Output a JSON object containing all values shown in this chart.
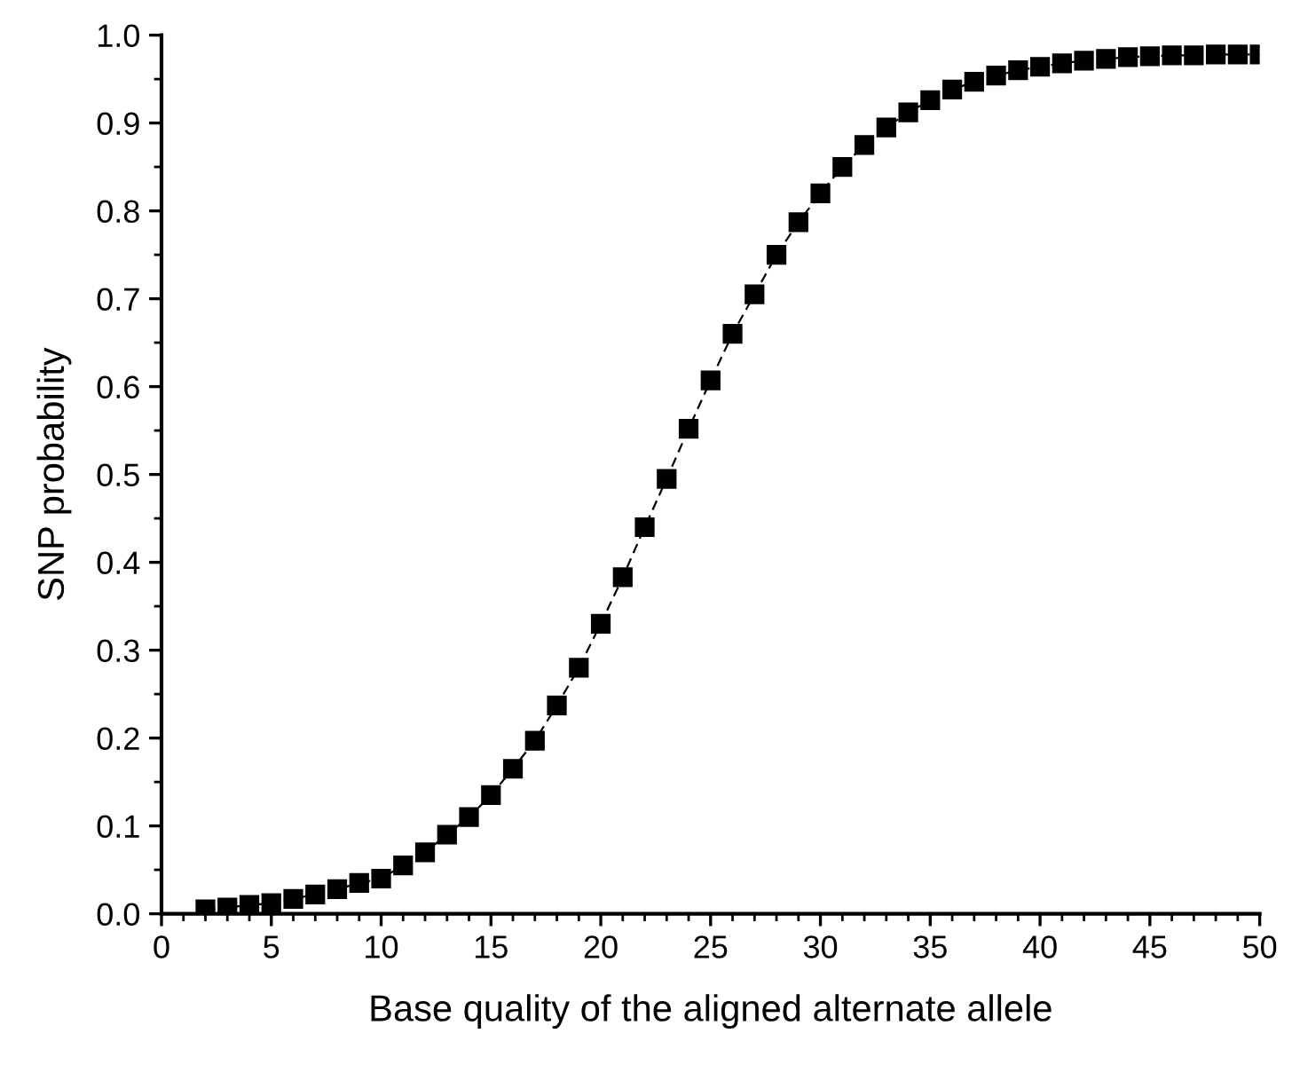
{
  "chart_data": {
    "type": "line",
    "xlabel": "Base quality of the aligned alternate allele",
    "ylabel": "SNP probability",
    "x": [
      2,
      3,
      4,
      5,
      6,
      7,
      8,
      9,
      10,
      11,
      12,
      13,
      14,
      15,
      16,
      17,
      18,
      19,
      20,
      21,
      22,
      23,
      24,
      25,
      26,
      27,
      28,
      29,
      30,
      31,
      32,
      33,
      34,
      35,
      36,
      37,
      38,
      39,
      40,
      41,
      42,
      43,
      44,
      45,
      46,
      47,
      48,
      49,
      50
    ],
    "series": [
      {
        "color": "#000000",
        "values": [
          0.005,
          0.007,
          0.01,
          0.012,
          0.017,
          0.022,
          0.028,
          0.035,
          0.04,
          0.055,
          0.07,
          0.09,
          0.11,
          0.135,
          0.165,
          0.197,
          0.237,
          0.28,
          0.33,
          0.383,
          0.44,
          0.495,
          0.552,
          0.607,
          0.66,
          0.705,
          0.75,
          0.787,
          0.82,
          0.85,
          0.875,
          0.895,
          0.912,
          0.926,
          0.938,
          0.947,
          0.954,
          0.96,
          0.964,
          0.968,
          0.971,
          0.973,
          0.975,
          0.976,
          0.977,
          0.977,
          0.978,
          0.978,
          0.978
        ]
      }
    ],
    "xlim": [
      0,
      50
    ],
    "xticks": [
      0,
      5,
      10,
      15,
      20,
      25,
      30,
      35,
      40,
      45,
      50
    ],
    "ylim": [
      0,
      1.0
    ],
    "yticks": [
      {
        "value": 0,
        "label": "0.0"
      },
      {
        "value": 0.1,
        "label": "0.1"
      },
      {
        "value": 0.2,
        "label": "0.2"
      },
      {
        "value": 0.3,
        "label": "0.3"
      },
      {
        "value": 0.4,
        "label": "0.4"
      },
      {
        "value": 0.5,
        "label": "0.5"
      },
      {
        "value": 0.6,
        "label": "0.6"
      },
      {
        "value": 0.7,
        "label": "0.7"
      },
      {
        "value": 0.8,
        "label": "0.8"
      },
      {
        "value": 0.9,
        "label": "0.9"
      },
      {
        "value": 1.0,
        "label": "1.0"
      }
    ],
    "marker": "square",
    "line_style": "dashed",
    "grid": false,
    "legend": false
  }
}
